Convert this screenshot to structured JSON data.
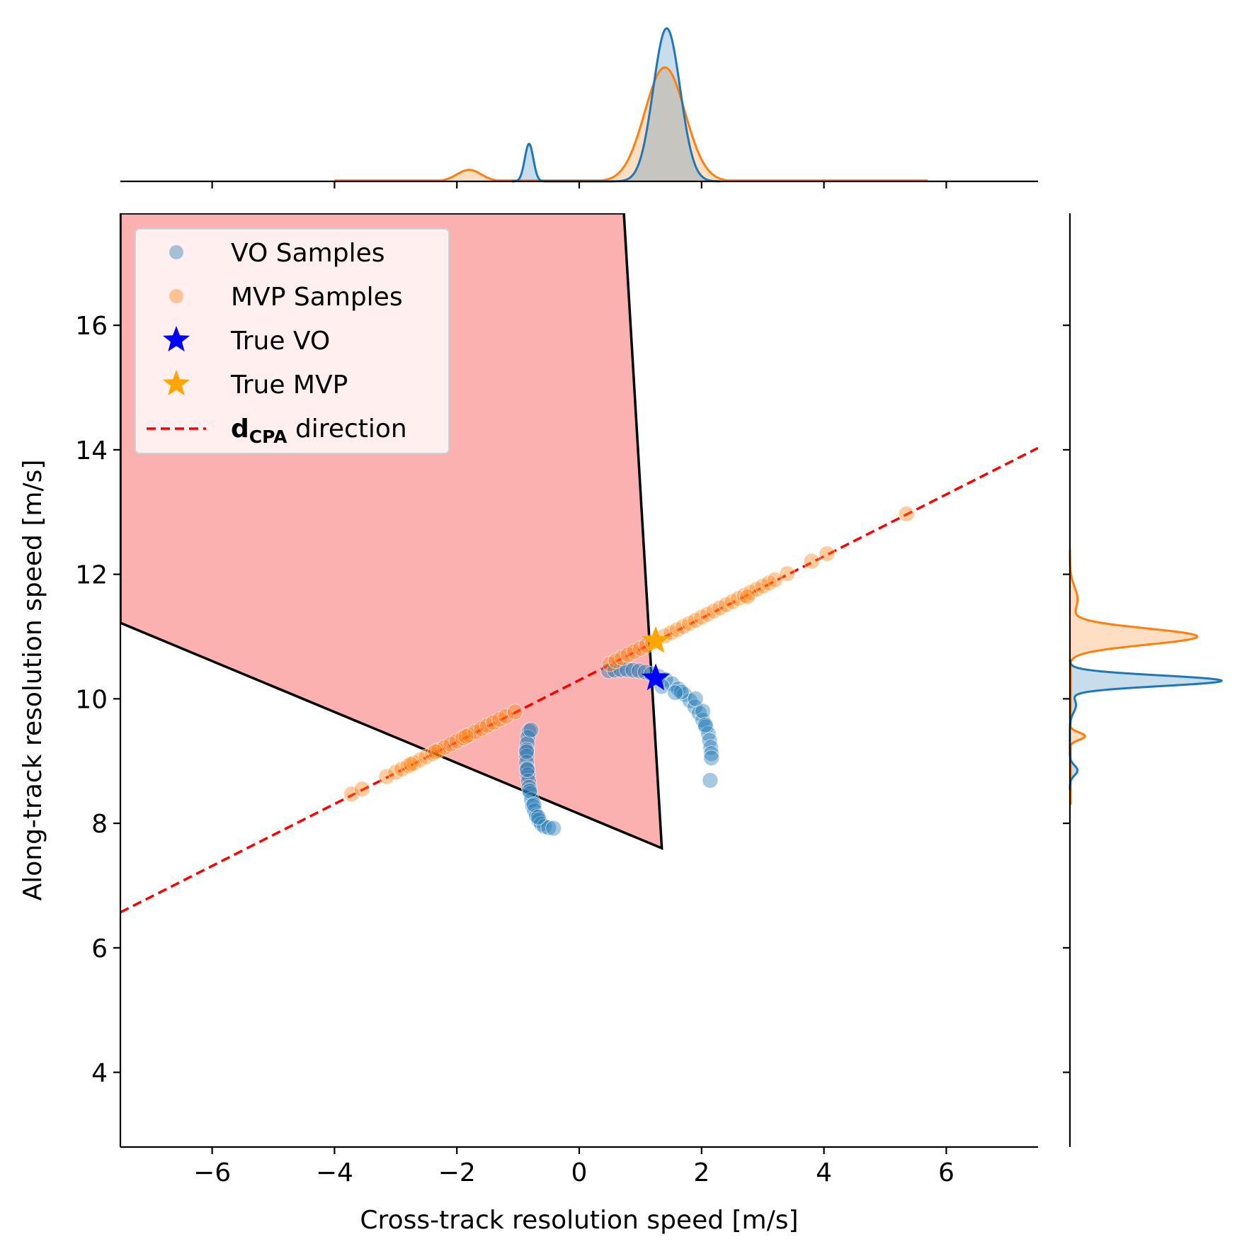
{
  "chart_data": {
    "type": "scatter",
    "xlabel": "Cross-track resolution speed [m/s]",
    "ylabel": "Along-track resolution speed [m/s]",
    "xlim": [
      -7.5,
      7.5
    ],
    "ylim": [
      2.8,
      17.8
    ],
    "x_ticks": [
      -6,
      -4,
      -2,
      0,
      2,
      4,
      6
    ],
    "x_tick_labels": [
      "−6",
      "−4",
      "−2",
      "0",
      "2",
      "4",
      "6"
    ],
    "y_ticks": [
      4,
      6,
      8,
      10,
      12,
      14,
      16
    ],
    "y_tick_labels": [
      "4",
      "6",
      "8",
      "10",
      "12",
      "14",
      "16"
    ],
    "grid": false,
    "legend_position": "top-left",
    "legend": [
      {
        "key": "vo",
        "label": "VO Samples",
        "marker": "circle",
        "color": "#1f77b4"
      },
      {
        "key": "mvp",
        "label": "MVP Samples",
        "marker": "circle",
        "color": "#ff7f0e"
      },
      {
        "key": "true_vo",
        "label": "True VO",
        "marker": "star",
        "color": "#0000ff"
      },
      {
        "key": "true_mvp",
        "label": "True MVP",
        "marker": "star",
        "color": "#ffa500"
      },
      {
        "key": "dcpa",
        "label_bold": "d",
        "label_sub": "CPA",
        "label_rest": " direction",
        "marker": "dashed-line",
        "color": "#ff0000"
      }
    ],
    "colors": {
      "vo": "#1f77b4",
      "mvp": "#ff7f0e",
      "true_vo": "#0000ff",
      "true_mvp": "#ffa500",
      "dcpa_line": "#ff0000",
      "region_fill": "#fcb1b1",
      "region_edge": "#000000"
    },
    "region_polygon": [
      [
        -7.5,
        17.8
      ],
      [
        0.73,
        17.8
      ],
      [
        1.35,
        7.6
      ],
      [
        -7.5,
        11.22
      ]
    ],
    "dcpa_line": {
      "x": [
        -7.5,
        7.5
      ],
      "y": [
        6.57,
        14.03
      ]
    },
    "true_vo": {
      "x": 1.25,
      "y": 10.33
    },
    "true_mvp": {
      "x": 1.25,
      "y": 10.93
    },
    "series": [
      {
        "name": "VO Samples",
        "x": [
          -0.82,
          -0.84,
          -0.85,
          -0.86,
          -0.86,
          -0.86,
          -0.85,
          -0.84,
          -0.83,
          -0.82,
          -0.8,
          -0.78,
          -0.76,
          -0.73,
          -0.7,
          -0.66,
          -0.62,
          -0.57,
          -0.5,
          -0.42,
          -0.79,
          -0.86,
          -0.85,
          -0.81,
          -0.74,
          -0.67,
          0.48,
          0.58,
          0.68,
          0.78,
          0.88,
          0.98,
          1.08,
          1.18,
          1.3,
          1.41,
          1.52,
          1.62,
          1.72,
          1.81,
          1.89,
          1.96,
          2.02,
          2.07,
          2.11,
          2.13,
          2.15,
          2.16,
          2.16,
          2.14,
          2.02,
          1.9,
          1.67,
          1.35,
          1.57,
          2.06
        ],
        "y": [
          9.48,
          9.38,
          9.28,
          9.18,
          9.08,
          8.98,
          8.88,
          8.78,
          8.68,
          8.58,
          8.48,
          8.38,
          8.28,
          8.2,
          8.12,
          8.05,
          7.99,
          7.95,
          7.93,
          7.92,
          9.5,
          9.15,
          8.86,
          8.52,
          8.3,
          8.1,
          10.45,
          10.46,
          10.47,
          10.47,
          10.46,
          10.45,
          10.43,
          10.4,
          10.36,
          10.31,
          10.24,
          10.16,
          10.07,
          9.97,
          9.87,
          9.77,
          9.66,
          9.55,
          9.44,
          9.33,
          9.22,
          9.12,
          9.05,
          8.69,
          9.8,
          10.0,
          10.11,
          10.2,
          10.1,
          9.58
        ]
      },
      {
        "name": "MVP Samples",
        "x": [
          -3.72,
          -3.55,
          -3.15,
          -3.0,
          -2.9,
          -2.8,
          -2.7,
          -2.6,
          -2.5,
          -2.4,
          -2.3,
          -2.2,
          -2.1,
          -2.0,
          -1.9,
          -1.8,
          -1.7,
          -1.6,
          -1.5,
          -1.4,
          -1.3,
          -1.2,
          -1.05,
          0.5,
          0.6,
          0.7,
          0.8,
          0.9,
          1.0,
          1.1,
          1.2,
          1.4,
          1.5,
          1.6,
          1.7,
          1.8,
          1.9,
          2.0,
          2.1,
          2.2,
          2.3,
          2.4,
          2.5,
          2.6,
          2.7,
          2.8,
          2.9,
          3.0,
          3.1,
          3.2,
          3.4,
          3.8,
          4.05,
          5.35,
          -2.75,
          -2.35,
          -1.85,
          2.75
        ],
        "y": [
          8.47,
          8.55,
          8.75,
          8.82,
          8.87,
          8.92,
          8.97,
          9.02,
          9.07,
          9.12,
          9.17,
          9.22,
          9.27,
          9.32,
          9.37,
          9.42,
          9.47,
          9.52,
          9.57,
          9.62,
          9.67,
          9.72,
          9.79,
          10.56,
          10.61,
          10.66,
          10.71,
          10.76,
          10.81,
          10.86,
          10.91,
          11.01,
          11.06,
          11.11,
          11.16,
          11.21,
          11.26,
          11.31,
          11.36,
          11.41,
          11.46,
          11.51,
          11.56,
          11.61,
          11.66,
          11.71,
          11.76,
          11.81,
          11.86,
          11.91,
          12.01,
          12.21,
          12.33,
          12.97,
          8.95,
          9.15,
          9.4,
          11.64
        ]
      }
    ],
    "top_marginal": {
      "type": "kde",
      "axis": "x",
      "series": [
        {
          "name": "VO Samples",
          "peaks": [
            {
              "mu": -0.82,
              "sigma": 0.07,
              "height": 0.245
            },
            {
              "mu": 1.43,
              "sigma": 0.22,
              "height": 1.0
            }
          ]
        },
        {
          "name": "MVP Samples",
          "peaks": [
            {
              "mu": -1.8,
              "sigma": 0.2,
              "height": 0.075
            },
            {
              "mu": 1.4,
              "sigma": 0.33,
              "height": 0.745
            }
          ],
          "floor": {
            "from": -4.0,
            "to": 5.7,
            "height": 0.006
          }
        }
      ]
    },
    "right_marginal": {
      "type": "kde",
      "axis": "y",
      "series": [
        {
          "name": "VO Samples",
          "peaks": [
            {
              "mu": 10.29,
              "sigma": 0.085,
              "height": 1.0
            },
            {
              "mu": 8.85,
              "sigma": 0.08,
              "height": 0.05
            },
            {
              "mu": 9.9,
              "sigma": 0.12,
              "height": 0.04
            }
          ]
        },
        {
          "name": "MVP Samples",
          "peaks": [
            {
              "mu": 11.0,
              "sigma": 0.13,
              "height": 0.84
            },
            {
              "mu": 9.4,
              "sigma": 0.06,
              "height": 0.1
            },
            {
              "mu": 11.6,
              "sigma": 0.2,
              "height": 0.05
            }
          ],
          "floor": {
            "from": 8.3,
            "to": 11.9,
            "height": 0.005
          }
        }
      ]
    }
  }
}
